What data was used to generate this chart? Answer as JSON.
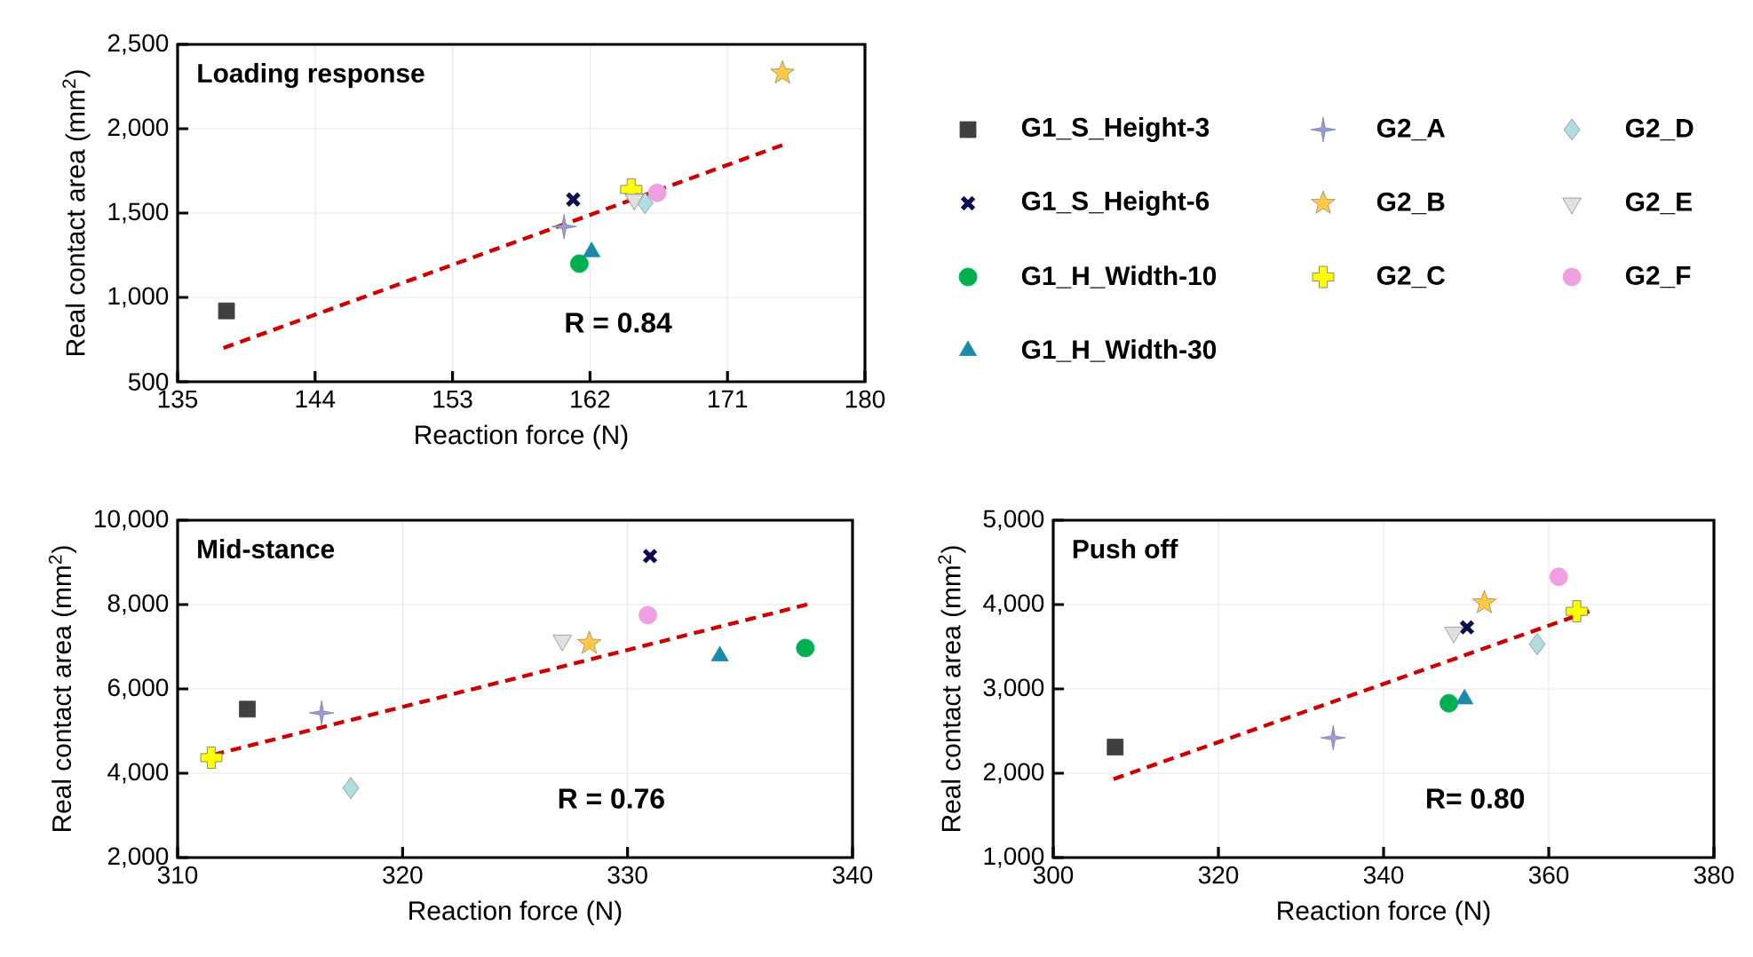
{
  "chart_data": [
    {
      "type": "scatter",
      "title": "Loading response",
      "xlabel": "Reaction force (N)",
      "ylabel": "Real contact area (mm$^{2}$)",
      "xlim": [
        135,
        180
      ],
      "ylim": [
        500,
        2500
      ],
      "xticks": [
        135,
        144,
        153,
        162,
        171,
        180
      ],
      "yticks": [
        500,
        {
          "value": 1000,
          "label": "1,000"
        },
        {
          "value": 1500,
          "label": "1,500"
        },
        {
          "value": 2000,
          "label": "2,000"
        },
        {
          "value": 2500,
          "label": "2,500"
        }
      ],
      "grid": true,
      "legend": "right",
      "annotations": [
        "R = 0.84"
      ],
      "series": [
        {
          "name": "G1_S_Height-3",
          "color": "#404040",
          "marker": "square",
          "x": [
            138.2
          ],
          "values": [
            920
          ]
        },
        {
          "name": "G1_S_Height-6",
          "color": "#0d0d50",
          "marker": "cross",
          "x": [
            160.9
          ],
          "values": [
            1580
          ]
        },
        {
          "name": "G1_H_Width-10",
          "color": "#00b050",
          "marker": "circle",
          "x": [
            161.3
          ],
          "values": [
            1200
          ]
        },
        {
          "name": "G1_H_Width-30",
          "color": "#1a8aa8",
          "marker": "triangle",
          "x": [
            162.1
          ],
          "values": [
            1270
          ]
        },
        {
          "name": "G2_A",
          "color": "#9999dd",
          "marker": "star4",
          "x": [
            160.3
          ],
          "values": [
            1420
          ]
        },
        {
          "name": "G2_B",
          "color": "#ffc845",
          "marker": "star",
          "x": [
            174.6
          ],
          "values": [
            2330
          ]
        },
        {
          "name": "G2_C",
          "color": "#ffff00",
          "marker": "plus",
          "x": [
            164.7
          ],
          "values": [
            1640
          ]
        },
        {
          "name": "G2_D",
          "color": "#b0dde0",
          "marker": "diamond",
          "x": [
            165.6
          ],
          "values": [
            1560
          ]
        },
        {
          "name": "G2_E",
          "color": "#e0e0e0",
          "marker": "triangle-down",
          "x": [
            164.9
          ],
          "values": [
            1580
          ]
        },
        {
          "name": "G2_F",
          "color": "#f0a0e0",
          "marker": "circle",
          "x": [
            166.4
          ],
          "values": [
            1620
          ]
        },
        {
          "type": "line",
          "color": "#cc0000",
          "line_style": "dashed",
          "marker": "none",
          "x": [
            138.0,
            174.8
          ],
          "values": [
            700,
            1910
          ]
        }
      ]
    },
    {
      "type": "scatter",
      "title": "Mid-stance",
      "xlabel": "Reaction force (N)",
      "ylabel": "Real contact area (mm$^{2}$)",
      "xlim": [
        310,
        340
      ],
      "ylim": [
        2000,
        10000
      ],
      "xticks": [
        310,
        320,
        330,
        340
      ],
      "yticks": [
        {
          "value": 2000,
          "label": "2,000"
        },
        {
          "value": 4000,
          "label": "4,000"
        },
        {
          "value": 6000,
          "label": "6,000"
        },
        {
          "value": 8000,
          "label": "8,000"
        },
        {
          "value": 10000,
          "label": "10,000"
        }
      ],
      "grid": true,
      "annotations": [
        "R = 0.76"
      ],
      "series": [
        {
          "color": "#404040",
          "marker": "square",
          "x": [
            313.1
          ],
          "values": [
            5520
          ]
        },
        {
          "color": "#0d0d50",
          "marker": "cross",
          "x": [
            331.0
          ],
          "values": [
            9150
          ]
        },
        {
          "color": "#00b050",
          "marker": "circle",
          "x": [
            337.9
          ],
          "values": [
            6970
          ]
        },
        {
          "color": "#1a8aa8",
          "marker": "triangle",
          "x": [
            334.1
          ],
          "values": [
            6780
          ]
        },
        {
          "color": "#9999dd",
          "marker": "star4",
          "x": [
            316.4
          ],
          "values": [
            5430
          ]
        },
        {
          "color": "#ffc845",
          "marker": "star",
          "x": [
            328.3
          ],
          "values": [
            7080
          ]
        },
        {
          "color": "#ffff00",
          "marker": "plus",
          "x": [
            311.5
          ],
          "values": [
            4370
          ]
        },
        {
          "color": "#b0dde0",
          "marker": "diamond",
          "x": [
            317.7
          ],
          "values": [
            3650
          ]
        },
        {
          "color": "#e0e0e0",
          "marker": "triangle-down",
          "x": [
            327.1
          ],
          "values": [
            7150
          ]
        },
        {
          "color": "#f0a0e0",
          "marker": "circle",
          "x": [
            330.9
          ],
          "values": [
            7750
          ]
        },
        {
          "type": "line",
          "color": "#cc0000",
          "line_style": "dashed",
          "marker": "none",
          "x": [
            311.6,
            338.2
          ],
          "values": [
            4440,
            8030
          ]
        }
      ]
    },
    {
      "type": "scatter",
      "title": "Push off",
      "xlabel": "Reaction force (N)",
      "ylabel": "Real contact area (mm$^{2}$)",
      "xlim": [
        300,
        380
      ],
      "ylim": [
        1000,
        5000
      ],
      "xticks": [
        300,
        320,
        340,
        360,
        380
      ],
      "yticks": [
        {
          "value": 1000,
          "label": "1,000"
        },
        {
          "value": 2000,
          "label": "2,000"
        },
        {
          "value": 3000,
          "label": "3,000"
        },
        {
          "value": 4000,
          "label": "4,000"
        },
        {
          "value": 5000,
          "label": "5,000"
        }
      ],
      "grid": true,
      "annotations": [
        "R= 0.80"
      ],
      "series": [
        {
          "color": "#404040",
          "marker": "square",
          "x": [
            307.5
          ],
          "values": [
            2310
          ]
        },
        {
          "color": "#0d0d50",
          "marker": "cross",
          "x": [
            350.1
          ],
          "values": [
            3730
          ]
        },
        {
          "color": "#00b050",
          "marker": "circle",
          "x": [
            347.9
          ],
          "values": [
            2830
          ]
        },
        {
          "color": "#1a8aa8",
          "marker": "triangle",
          "x": [
            349.8
          ],
          "values": [
            2880
          ]
        },
        {
          "color": "#9999dd",
          "marker": "star4",
          "x": [
            333.9
          ],
          "values": [
            2420
          ]
        },
        {
          "color": "#ffc845",
          "marker": "star",
          "x": [
            352.2
          ],
          "values": [
            4020
          ]
        },
        {
          "color": "#ffff00",
          "marker": "plus",
          "x": [
            363.4
          ],
          "values": [
            3920
          ]
        },
        {
          "color": "#b0dde0",
          "marker": "diamond",
          "x": [
            358.6
          ],
          "values": [
            3530
          ]
        },
        {
          "color": "#e0e0e0",
          "marker": "triangle-down",
          "x": [
            348.5
          ],
          "values": [
            3670
          ]
        },
        {
          "color": "#f0a0e0",
          "marker": "circle",
          "x": [
            361.2
          ],
          "values": [
            4330
          ]
        },
        {
          "type": "line",
          "color": "#cc0000",
          "line_style": "dashed",
          "marker": "none",
          "x": [
            307.3,
            364.9
          ],
          "values": [
            1930,
            3920
          ]
        }
      ]
    }
  ]
}
